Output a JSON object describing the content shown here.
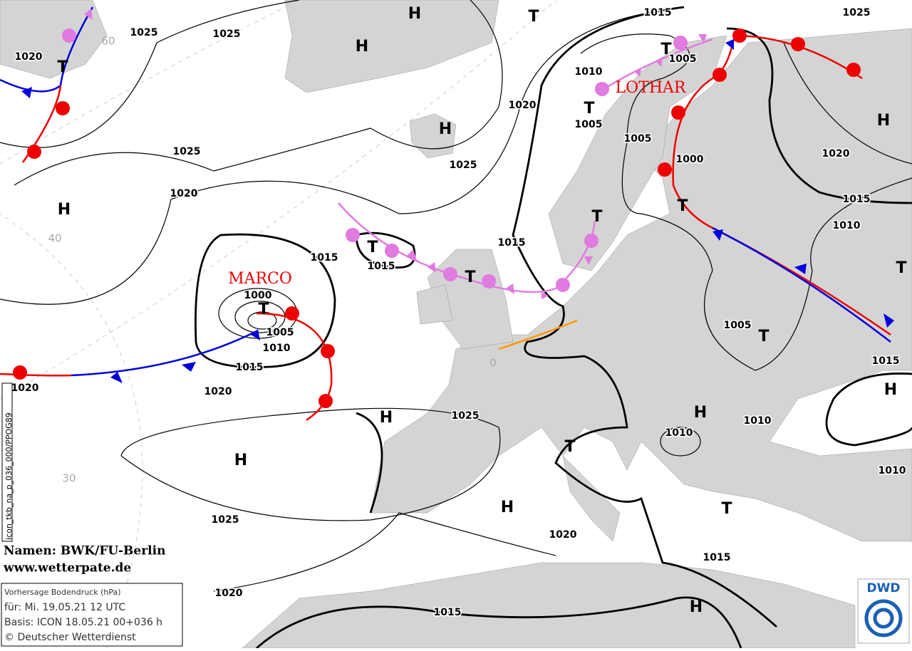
{
  "map": {
    "isobar_labels": [
      1025,
      1025,
      1020,
      1015,
      1025,
      1005,
      1010,
      1020,
      1005,
      1025,
      1025,
      1005,
      1000,
      1020,
      1020,
      1015,
      1010,
      1015,
      1015,
      1015,
      1000,
      1005,
      1010,
      1005,
      1015,
      1015,
      1020,
      1020,
      1025,
      1010,
      1010,
      1010,
      1025,
      1020,
      1015,
      1020,
      1015
    ],
    "pressure_centers": [
      "H",
      "T",
      "H",
      "T",
      "T",
      "T",
      "H",
      "H",
      "H",
      "T",
      "T",
      "T",
      "T",
      "T",
      "T",
      "T",
      "H",
      "H",
      "H",
      "H",
      "T",
      "H",
      "T",
      "H"
    ],
    "storm_names": [
      "MARCO",
      "LOTHAR"
    ],
    "latitude_labels": [
      "60",
      "40",
      "30",
      "0"
    ],
    "side_label": "icon_tkb_na_p_036_000/PPOG89",
    "credits": [
      "Namen: BWK/FU-Berlin",
      "www.wetterpate.de"
    ],
    "info_box": [
      "Vorhersage Bodendruck (hPa)",
      "für:  Mi. 19.05.21  12 UTC",
      "Basis: ICON  18.05.21 00+036 h",
      "© Deutscher Wetterdienst"
    ],
    "logo": "DWD"
  }
}
